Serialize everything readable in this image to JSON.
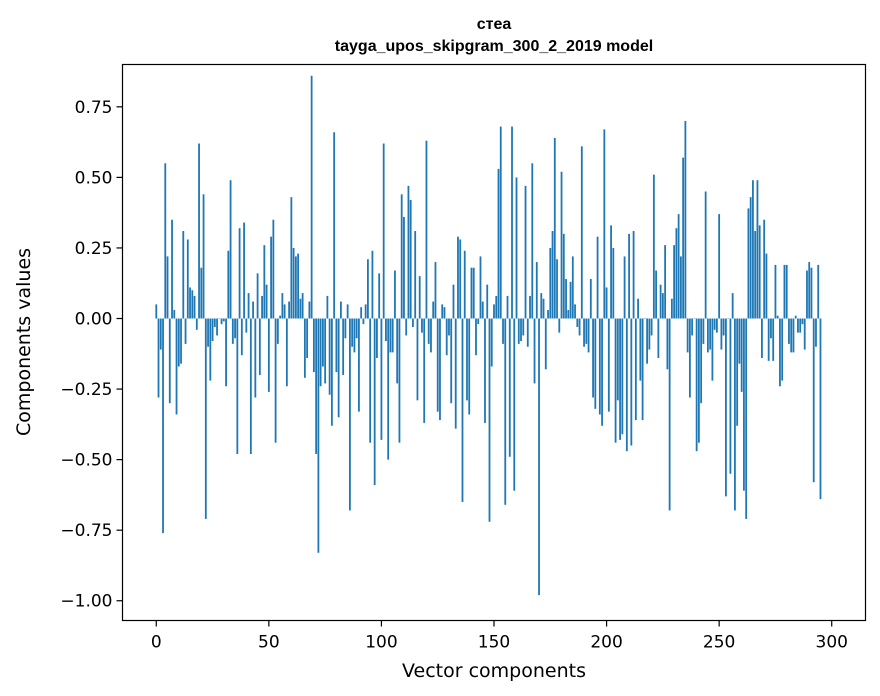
{
  "chart_data": {
    "type": "bar",
    "title": "стеа",
    "subtitle": "tayga_upos_skipgram_300_2_2019 model",
    "xlabel": "Vector components",
    "ylabel": "Components values",
    "xlim": [
      -15,
      315
    ],
    "ylim": [
      -1.07,
      0.9
    ],
    "xticks": [
      0,
      50,
      100,
      150,
      200,
      250,
      300
    ],
    "xtick_labels": [
      "0",
      "50",
      "100",
      "150",
      "200",
      "250",
      "300"
    ],
    "yticks": [
      0.75,
      0.5,
      0.25,
      0.0,
      -0.25,
      -0.5,
      -0.75,
      -1.0
    ],
    "ytick_labels": [
      "0.75",
      "0.50",
      "0.25",
      "0.00",
      "−0.25",
      "−0.50",
      "−0.75",
      "−1.00"
    ],
    "grid": false,
    "legend": "none",
    "bar_color": "#1f77b4",
    "values": [
      0.05,
      -0.28,
      -0.11,
      -0.76,
      0.55,
      0.22,
      -0.3,
      0.35,
      0.03,
      -0.34,
      -0.17,
      -0.16,
      0.31,
      -0.09,
      0.28,
      0.11,
      0.1,
      0.08,
      -0.04,
      0.62,
      0.18,
      0.44,
      -0.71,
      -0.1,
      -0.22,
      -0.08,
      -0.03,
      -0.06,
      0.0,
      -0.02,
      -0.01,
      -0.24,
      0.24,
      0.49,
      -0.09,
      -0.07,
      -0.48,
      0.32,
      -0.13,
      0.34,
      -0.05,
      0.09,
      -0.48,
      0.06,
      -0.28,
      0.16,
      -0.2,
      0.08,
      0.26,
      0.12,
      -0.26,
      0.29,
      0.35,
      -0.44,
      -0.09,
      0.01,
      0.09,
      0.05,
      -0.24,
      0.06,
      0.43,
      0.25,
      0.22,
      0.23,
      0.07,
      0.09,
      -0.21,
      -0.14,
      0.06,
      0.86,
      -0.19,
      -0.48,
      -0.83,
      -0.24,
      -0.17,
      -0.23,
      0.08,
      -0.27,
      -0.38,
      0.66,
      -0.19,
      -0.35,
      0.06,
      -0.2,
      -0.07,
      0.05,
      -0.68,
      -0.1,
      -0.12,
      -0.07,
      -0.33,
      0.04,
      -0.02,
      0.05,
      0.21,
      -0.44,
      0.24,
      -0.59,
      -0.14,
      0.16,
      -0.43,
      0.62,
      -0.08,
      -0.5,
      -0.12,
      -0.12,
      0.17,
      -0.23,
      -0.44,
      0.44,
      0.36,
      -0.06,
      0.47,
      0.42,
      -0.03,
      0.31,
      -0.29,
      0.15,
      -0.05,
      -0.37,
      0.63,
      -0.09,
      -0.12,
      0.06,
      0.2,
      -0.33,
      -0.36,
      0.05,
      0.04,
      -0.13,
      -0.06,
      -0.3,
      0.12,
      -0.39,
      0.29,
      0.28,
      -0.65,
      0.24,
      -0.29,
      -0.34,
      0.18,
      0.18,
      -0.13,
      -0.02,
      0.22,
      0.06,
      -0.37,
      0.12,
      -0.72,
      -0.17,
      0.05,
      0.08,
      0.53,
      0.68,
      -0.09,
      -0.66,
      0.08,
      -0.49,
      0.68,
      -0.61,
      0.5,
      -0.09,
      -0.08,
      -0.06,
      0.47,
      -0.1,
      0.08,
      0.55,
      -0.23,
      0.2,
      -0.98,
      0.09,
      0.07,
      -0.18,
      0.03,
      0.25,
      0.31,
      0.64,
      0.21,
      -0.05,
      0.52,
      0.3,
      0.14,
      0.03,
      0.13,
      0.22,
      0.05,
      -0.03,
      -0.06,
      0.61,
      -0.1,
      -0.09,
      -0.12,
      0.14,
      -0.28,
      -0.32,
      0.29,
      -0.34,
      -0.38,
      0.67,
      0.11,
      -0.33,
      0.33,
      0.25,
      -0.44,
      -0.29,
      -0.43,
      -0.41,
      0.22,
      -0.47,
      0.3,
      -0.45,
      0.31,
      -0.36,
      0.07,
      -0.22,
      -0.36,
      0.0,
      -0.16,
      -0.11,
      -0.06,
      0.51,
      0.17,
      -0.14,
      0.12,
      0.09,
      0.26,
      -0.18,
      -0.68,
      0.07,
      0.26,
      0.32,
      0.37,
      0.22,
      0.57,
      0.7,
      -0.12,
      -0.28,
      -0.06,
      0.0,
      -0.47,
      -0.44,
      -0.3,
      -0.09,
      0.45,
      -0.12,
      -0.11,
      -0.22,
      -0.04,
      -0.05,
      0.37,
      -0.11,
      -0.06,
      -0.63,
      0.0,
      -0.55,
      0.09,
      -0.68,
      -0.38,
      -0.16,
      -0.26,
      -0.61,
      -0.71,
      0.39,
      0.43,
      0.49,
      0.31,
      0.49,
      0.33,
      -0.14,
      0.35,
      0.23,
      -0.15,
      -0.07,
      -0.15,
      0.19,
      0.01,
      -0.24,
      -0.22,
      0.19,
      0.19,
      -0.09,
      -0.12,
      -0.12,
      0.01,
      -0.05,
      -0.05,
      -0.02,
      -0.11,
      0.17,
      0.2,
      0.18,
      -0.58,
      -0.1,
      0.19,
      -0.64
    ]
  }
}
